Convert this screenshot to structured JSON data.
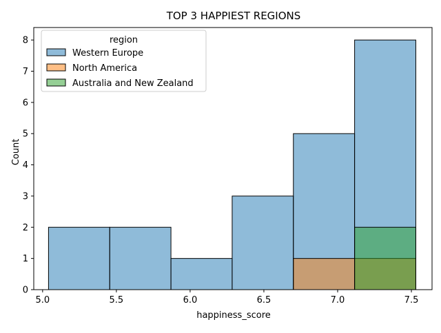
{
  "chart_data": {
    "type": "bar",
    "title": "TOP 3 HAPPIEST REGIONS",
    "xlabel": "happiness_score",
    "ylabel": "Count",
    "xlim": [
      4.94,
      7.64
    ],
    "ylim": [
      0,
      8.4
    ],
    "x_ticks": [
      5.0,
      5.5,
      6.0,
      6.5,
      7.0,
      7.5
    ],
    "x_tick_labels": [
      "5.0",
      "5.5",
      "6.0",
      "6.5",
      "7.0",
      "7.5"
    ],
    "y_ticks": [
      0,
      1,
      2,
      3,
      4,
      5,
      6,
      7,
      8
    ],
    "y_tick_labels": [
      "0",
      "1",
      "2",
      "3",
      "4",
      "5",
      "6",
      "7",
      "8"
    ],
    "bin_edges": [
      5.04,
      5.455,
      5.87,
      6.285,
      6.7,
      7.115,
      7.53
    ],
    "grid": false,
    "legend": {
      "title": "region",
      "placement": "top-left"
    },
    "series": [
      {
        "name": "Western Europe",
        "color": "#1f77b4",
        "counts": [
          2,
          2,
          1,
          3,
          5,
          8
        ]
      },
      {
        "name": "North America",
        "color": "#ff7f0e",
        "counts": [
          0,
          0,
          0,
          0,
          1,
          1
        ]
      },
      {
        "name": "Australia and New Zealand",
        "color": "#2ca02c",
        "counts": [
          0,
          0,
          0,
          0,
          0,
          2
        ]
      }
    ]
  }
}
